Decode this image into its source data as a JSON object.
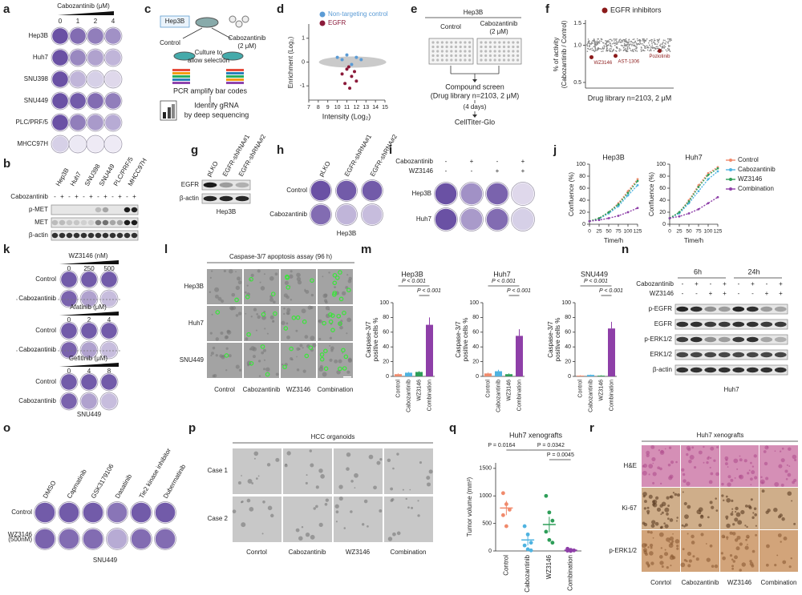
{
  "panels": {
    "a": {
      "letter": "a",
      "title": "Cabozantinib (μM)",
      "doses": [
        0,
        1,
        2,
        4
      ],
      "rows": [
        "Hep3B",
        "Huh7",
        "SNU398",
        "SNU449",
        "PLC/PRF/5",
        "MHCC97H"
      ]
    },
    "b": {
      "letter": "b",
      "columns": [
        "Hep3B",
        "Huh7",
        "SNU398",
        "SNU449",
        "PLC/PRF/5",
        "MHCC97H"
      ],
      "treatment": "Cabozantinib",
      "signs": [
        "-",
        "+",
        "-",
        "+",
        "-",
        "+",
        "-",
        "+",
        "-",
        "+",
        "-",
        "+"
      ],
      "rows": [
        "p-MET",
        "MET",
        "β-actin"
      ]
    },
    "c": {
      "letter": "c",
      "cell_line": "Hep3B",
      "control": "Control",
      "treated": "Cabozantinib",
      "dose": "(2 μM)",
      "step1": [
        "Culture to",
        "allow selection"
      ],
      "step2": "PCR amplify bar codes",
      "step3": [
        "Identify gRNA",
        "by deep sequencing"
      ]
    },
    "d": {
      "letter": "d",
      "type": "scatter",
      "xlabel": "Intensity (Log₂)",
      "ylabel": "Enrichment (Log₂)",
      "xlim": [
        7,
        15
      ],
      "ylim": [
        -1.6,
        1.6
      ],
      "xticks": [
        7,
        8,
        9,
        10,
        11,
        12,
        13,
        14,
        15
      ],
      "yticks": [
        -1,
        0,
        1
      ],
      "series": [
        {
          "name": "Non-targeting control",
          "color": "#5b9bd5",
          "x": [
            10,
            10.5,
            11,
            11.5,
            12,
            12.5
          ],
          "y": [
            0.2,
            0.1,
            0.3,
            -0.1,
            0.2,
            0.1
          ]
        },
        {
          "name": "EGFR",
          "color": "#8b1a3a",
          "x": [
            10.5,
            10.8,
            11,
            11.2,
            11.3,
            11.5,
            11.8,
            12
          ],
          "y": [
            -0.5,
            -0.9,
            -0.3,
            -0.2,
            -1.1,
            -0.6,
            -0.4,
            -0.8
          ]
        }
      ]
    },
    "e": {
      "letter": "e",
      "cell_line": "Hep3B",
      "control": "Control",
      "treated": "Cabozantinib",
      "dose": "(2 μM)",
      "step1": "Compound screen",
      "library": "(Drug library n=2103, 2 μM)",
      "duration": "(4 days)",
      "readout": "CellTiter-Glo"
    },
    "f": {
      "letter": "f",
      "type": "scatter",
      "ylabel": [
        "% of activity",
        "(Cabozantinib / Control)"
      ],
      "xlabel": "Drug library n=2103, 2 μM",
      "xlim": [
        0,
        2200
      ],
      "ylim": [
        0.45,
        1.6
      ],
      "yticks": [
        0.5,
        {
          "value": 1,
          "label": "1.0"
        },
        1.5
      ],
      "series": [
        {
          "name": "EGFR inhibitors",
          "color": "#8b1a1a",
          "x": [
            150,
            750,
            1850
          ],
          "y": [
            0.8,
            0.82,
            0.9
          ]
        }
      ],
      "point_labels": [
        "WZ3146",
        "AST-1306",
        "Poziotinib"
      ]
    },
    "g": {
      "letter": "g",
      "columns": [
        "pLKO",
        "EGFR-shRNA#1",
        "EGFR-shRNA#2"
      ],
      "rows": [
        "EGFR",
        "β-actin"
      ],
      "cell_line": "Hep3B"
    },
    "h": {
      "letter": "h",
      "columns": [
        "pLKO",
        "EGFR-shRNA#1",
        "EGFR-shRNA#2"
      ],
      "rows": [
        "Control",
        "Cabozantinib"
      ],
      "cell_line": "Hep3B"
    },
    "i": {
      "letter": "i",
      "treatments": [
        "Cabozantinib",
        "WZ3146"
      ],
      "signs": [
        [
          "-",
          "+",
          "-",
          "+"
        ],
        [
          "-",
          "-",
          "+",
          "+"
        ]
      ],
      "rows": [
        "Hep3B",
        "Huh7"
      ]
    },
    "j": {
      "letter": "j",
      "type": "line",
      "xlabel": "Time/h",
      "ylabel": "Confluence (%)",
      "x": [
        0,
        25,
        50,
        75,
        100,
        125
      ],
      "xlim": [
        0,
        125
      ],
      "xticks": [
        0,
        25,
        50,
        75,
        100,
        125
      ],
      "ylim": [
        0,
        100
      ],
      "yticks": [
        0,
        20,
        40,
        60,
        80,
        100
      ],
      "charts": [
        {
          "title": "Hep3B",
          "series": [
            {
              "name": "Control",
              "color": "#f08a6c",
              "values": [
                5,
                10,
                20,
                35,
                55,
                75
              ]
            },
            {
              "name": "Cabozantinib",
              "color": "#4fb3e0",
              "values": [
                5,
                9,
                18,
                30,
                48,
                65
              ]
            },
            {
              "name": "WZ3146",
              "color": "#2e9e58",
              "values": [
                5,
                10,
                20,
                33,
                52,
                72
              ]
            },
            {
              "name": "Combination",
              "color": "#8e3fa8",
              "values": [
                5,
                7,
                10,
                14,
                20,
                27
              ]
            }
          ]
        },
        {
          "title": "Huh7",
          "series": [
            {
              "name": "Control",
              "color": "#f08a6c",
              "values": [
                10,
                20,
                40,
                65,
                85,
                95
              ]
            },
            {
              "name": "Cabozantinib",
              "color": "#4fb3e0",
              "values": [
                10,
                18,
                35,
                55,
                75,
                88
              ]
            },
            {
              "name": "WZ3146",
              "color": "#2e9e58",
              "values": [
                10,
                20,
                38,
                62,
                82,
                93
              ]
            },
            {
              "name": "Combination",
              "color": "#8e3fa8",
              "values": [
                10,
                13,
                18,
                25,
                35,
                45
              ]
            }
          ]
        }
      ]
    },
    "k": {
      "letter": "k",
      "drugs": [
        {
          "title": "WZ3146 (nM)",
          "doses": [
            0,
            250,
            500
          ]
        },
        {
          "title": "Afatinib (μM)",
          "doses": [
            0,
            2,
            4
          ]
        },
        {
          "title": "Gefitinib (μM)",
          "doses": [
            0,
            4,
            8
          ]
        }
      ],
      "rows": [
        "Control",
        "Cabozantinib"
      ],
      "cell_line": "SNU449"
    },
    "l": {
      "letter": "l",
      "title": "Caspase-3/7 apoptosis assay (96 h)",
      "rows": [
        "Hep3B",
        "Huh7",
        "SNU449"
      ],
      "columns": [
        "Control",
        "Cabozantinib",
        "WZ3146",
        "Combination"
      ]
    },
    "m": {
      "letter": "m",
      "type": "bar",
      "ylabel": [
        "Caspase-3/7",
        "positive cells %"
      ],
      "categories": [
        "Control",
        "Cabozantinib",
        "WZ3146",
        "Combination"
      ],
      "colors": [
        "#f08a6c",
        "#4fb3e0",
        "#2e9e58",
        "#8e3fa8"
      ],
      "ylim": [
        0,
        100
      ],
      "yticks": [
        0,
        20,
        40,
        60,
        80,
        100
      ],
      "charts": [
        {
          "title": "Hep3B",
          "values": [
            3,
            5,
            6,
            70
          ],
          "errors": [
            1,
            1,
            1,
            10
          ],
          "p_labels": [
            "P < 0.001",
            "P < 0.001"
          ]
        },
        {
          "title": "Huh7",
          "values": [
            4,
            7,
            3,
            55
          ],
          "errors": [
            1,
            2,
            1,
            9
          ],
          "p_labels": [
            "P < 0.001",
            "P < 0.001"
          ]
        },
        {
          "title": "SNU449",
          "values": [
            1,
            2,
            1,
            65
          ],
          "errors": [
            0.5,
            0.5,
            0.5,
            9
          ],
          "p_labels": [
            "P < 0.001",
            "P < 0.001"
          ]
        }
      ]
    },
    "n": {
      "letter": "n",
      "times": [
        "6h",
        "24h"
      ],
      "treatments": [
        "Cabozantinib",
        "WZ3146"
      ],
      "signs": [
        [
          "-",
          "+",
          "-",
          "+",
          "-",
          "+",
          "-",
          "+"
        ],
        [
          "-",
          "-",
          "+",
          "+",
          "-",
          "-",
          "+",
          "+"
        ]
      ],
      "rows": [
        "p-EGFR",
        "EGFR",
        "p-ERK1/2",
        "ERK1/2",
        "β-actin"
      ],
      "cell_line": "Huh7"
    },
    "o": {
      "letter": "o",
      "columns": [
        "DMSO",
        "Capmatinib",
        "GSK3179106",
        "Dasatinib",
        "Tie2 kinase inhibitor",
        "Dubermatinib"
      ],
      "rows": [
        "Control",
        "WZ3146"
      ],
      "dose": "(500nM)",
      "cell_line": "SNU449"
    },
    "p": {
      "letter": "p",
      "title": "HCC organoids",
      "rows": [
        "Case 1",
        "Case 2"
      ],
      "columns": [
        "Conrtol",
        "Cabozantinib",
        "WZ3146",
        "Combination"
      ]
    },
    "q": {
      "letter": "q",
      "type": "dot",
      "title": "Huh7 xenografts",
      "ylabel": "Tumor volume (mm³)",
      "categories": [
        "Control",
        "Cabozantinib",
        "WZ3146",
        "Combination"
      ],
      "colors": [
        "#f08a6c",
        "#4fb3e0",
        "#2e9e58",
        "#8e3fa8"
      ],
      "ylim": [
        0,
        1600
      ],
      "yticks": [
        0,
        500,
        1000,
        1500
      ],
      "means": [
        780,
        200,
        480,
        15
      ],
      "errors": [
        130,
        100,
        140,
        5
      ],
      "points": [
        [
          1050,
          850,
          750,
          650,
          450
        ],
        [
          450,
          300,
          150,
          100,
          30,
          10
        ],
        [
          1000,
          700,
          550,
          350,
          200,
          150
        ],
        [
          40,
          20,
          10,
          5,
          0
        ]
      ],
      "p_labels": [
        "P = 0.0164",
        "P = 0.0342",
        "P = 0.0045"
      ]
    },
    "r": {
      "letter": "r",
      "title": "Huh7 xenografts",
      "rows": [
        "H&E",
        "Ki-67",
        "p-ERK1/2"
      ],
      "columns": [
        "Conrtol",
        "Cabozantinib",
        "WZ3146",
        "Combination"
      ]
    }
  }
}
